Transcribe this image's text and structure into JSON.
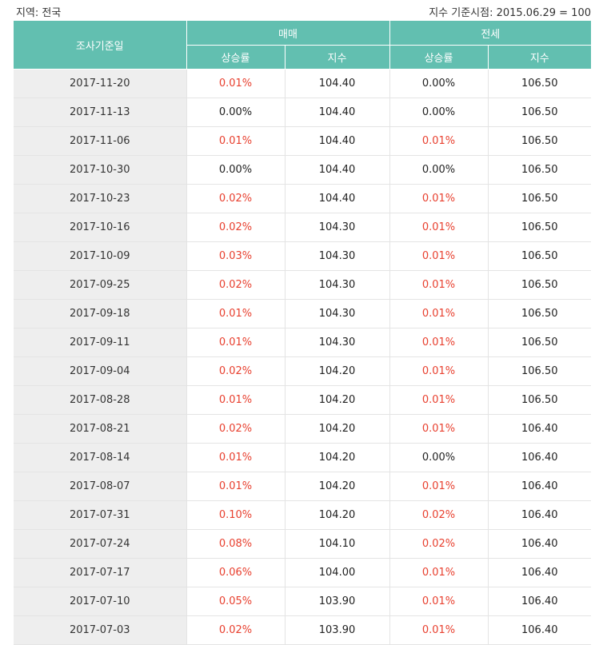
{
  "region_label": "지역: 전국",
  "base_label": "지수 기준시점: 2015.06.29 = 100",
  "headers": {
    "date": "조사기준일",
    "sale": "매매",
    "jeonse": "전세",
    "rate": "상승률",
    "index": "지수"
  },
  "colors": {
    "header_bg": "#62bfb0",
    "positive_rate": "#e8402f",
    "zero_rate": "#222222",
    "date_bg": "#eeeeee"
  },
  "rows": [
    {
      "date": "2017-11-20",
      "sale_rate": "0.01%",
      "sale_index": "104.40",
      "jeonse_rate": "0.00%",
      "jeonse_index": "106.50"
    },
    {
      "date": "2017-11-13",
      "sale_rate": "0.00%",
      "sale_index": "104.40",
      "jeonse_rate": "0.00%",
      "jeonse_index": "106.50"
    },
    {
      "date": "2017-11-06",
      "sale_rate": "0.01%",
      "sale_index": "104.40",
      "jeonse_rate": "0.01%",
      "jeonse_index": "106.50"
    },
    {
      "date": "2017-10-30",
      "sale_rate": "0.00%",
      "sale_index": "104.40",
      "jeonse_rate": "0.00%",
      "jeonse_index": "106.50"
    },
    {
      "date": "2017-10-23",
      "sale_rate": "0.02%",
      "sale_index": "104.40",
      "jeonse_rate": "0.01%",
      "jeonse_index": "106.50"
    },
    {
      "date": "2017-10-16",
      "sale_rate": "0.02%",
      "sale_index": "104.30",
      "jeonse_rate": "0.01%",
      "jeonse_index": "106.50"
    },
    {
      "date": "2017-10-09",
      "sale_rate": "0.03%",
      "sale_index": "104.30",
      "jeonse_rate": "0.01%",
      "jeonse_index": "106.50"
    },
    {
      "date": "2017-09-25",
      "sale_rate": "0.02%",
      "sale_index": "104.30",
      "jeonse_rate": "0.01%",
      "jeonse_index": "106.50"
    },
    {
      "date": "2017-09-18",
      "sale_rate": "0.01%",
      "sale_index": "104.30",
      "jeonse_rate": "0.01%",
      "jeonse_index": "106.50"
    },
    {
      "date": "2017-09-11",
      "sale_rate": "0.01%",
      "sale_index": "104.30",
      "jeonse_rate": "0.01%",
      "jeonse_index": "106.50"
    },
    {
      "date": "2017-09-04",
      "sale_rate": "0.02%",
      "sale_index": "104.20",
      "jeonse_rate": "0.01%",
      "jeonse_index": "106.50"
    },
    {
      "date": "2017-08-28",
      "sale_rate": "0.01%",
      "sale_index": "104.20",
      "jeonse_rate": "0.01%",
      "jeonse_index": "106.50"
    },
    {
      "date": "2017-08-21",
      "sale_rate": "0.02%",
      "sale_index": "104.20",
      "jeonse_rate": "0.01%",
      "jeonse_index": "106.40"
    },
    {
      "date": "2017-08-14",
      "sale_rate": "0.01%",
      "sale_index": "104.20",
      "jeonse_rate": "0.00%",
      "jeonse_index": "106.40"
    },
    {
      "date": "2017-08-07",
      "sale_rate": "0.01%",
      "sale_index": "104.20",
      "jeonse_rate": "0.01%",
      "jeonse_index": "106.40"
    },
    {
      "date": "2017-07-31",
      "sale_rate": "0.10%",
      "sale_index": "104.20",
      "jeonse_rate": "0.02%",
      "jeonse_index": "106.40"
    },
    {
      "date": "2017-07-24",
      "sale_rate": "0.08%",
      "sale_index": "104.10",
      "jeonse_rate": "0.02%",
      "jeonse_index": "106.40"
    },
    {
      "date": "2017-07-17",
      "sale_rate": "0.06%",
      "sale_index": "104.00",
      "jeonse_rate": "0.01%",
      "jeonse_index": "106.40"
    },
    {
      "date": "2017-07-10",
      "sale_rate": "0.05%",
      "sale_index": "103.90",
      "jeonse_rate": "0.01%",
      "jeonse_index": "106.40"
    },
    {
      "date": "2017-07-03",
      "sale_rate": "0.02%",
      "sale_index": "103.90",
      "jeonse_rate": "0.01%",
      "jeonse_index": "106.40"
    }
  ]
}
